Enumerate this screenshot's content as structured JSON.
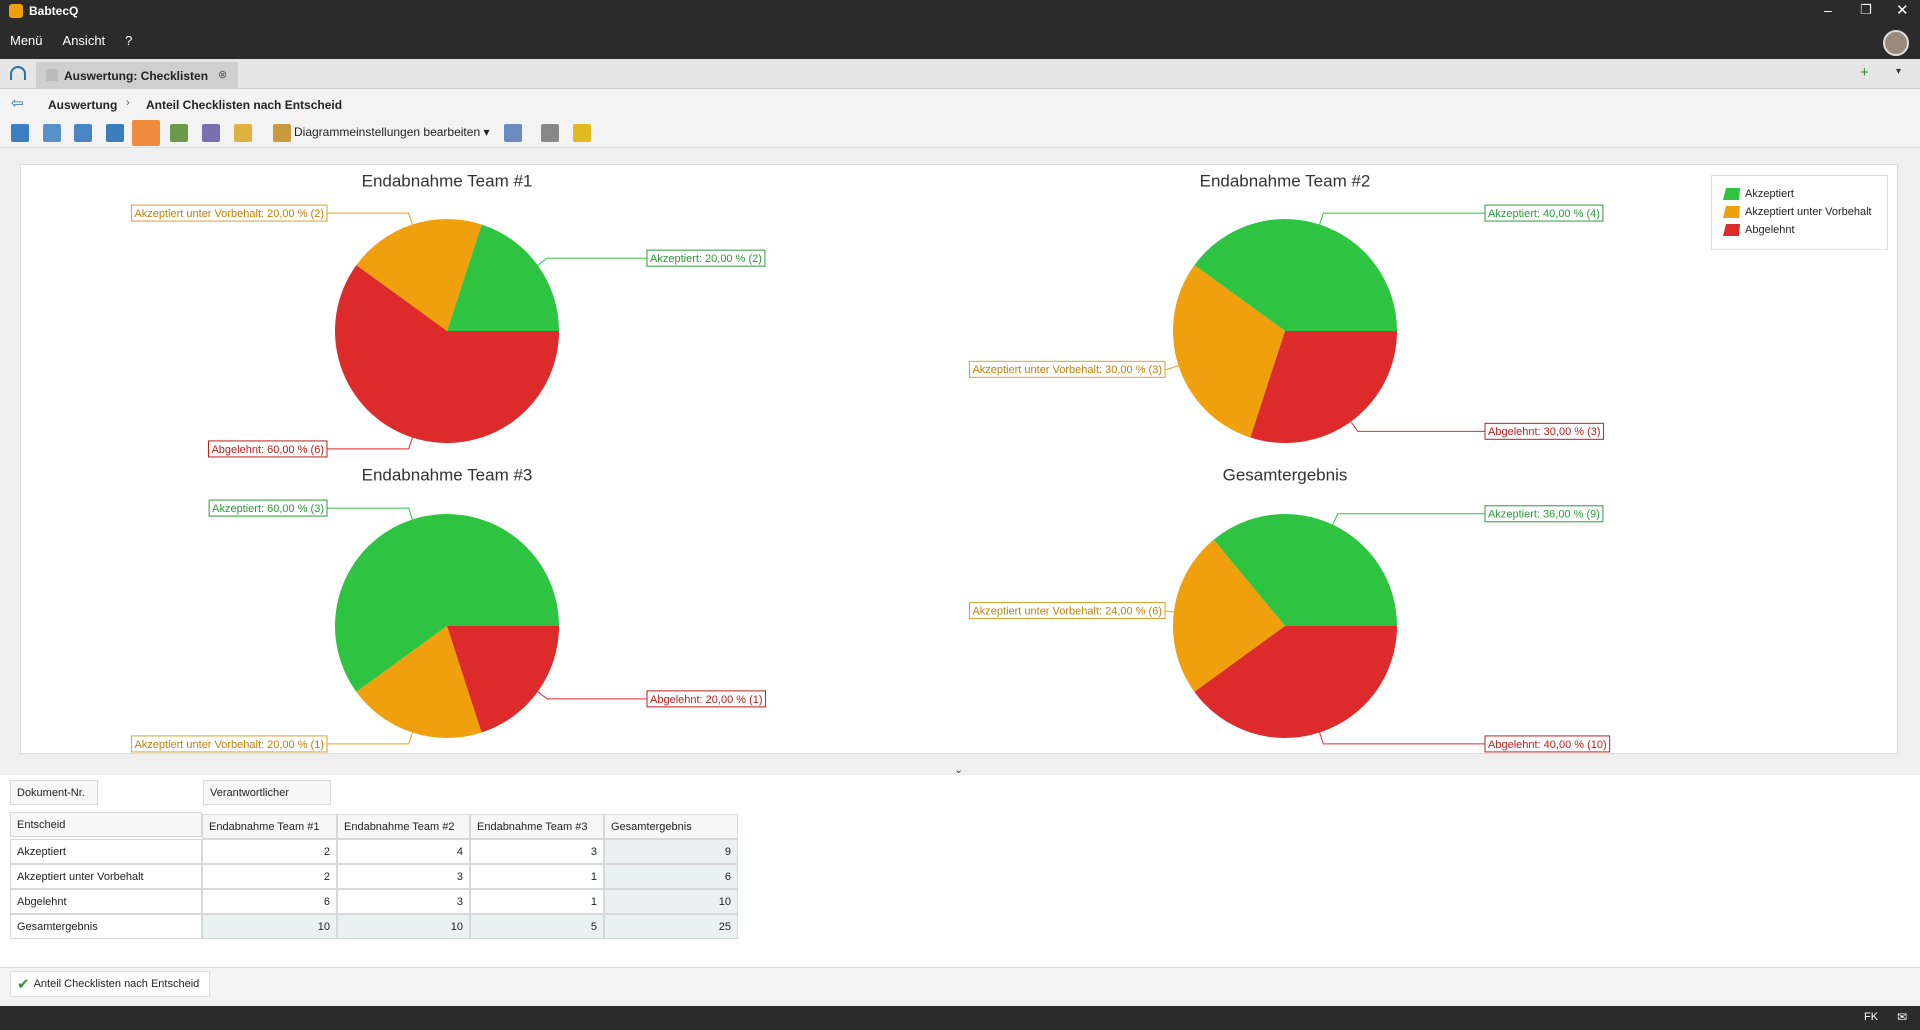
{
  "window": {
    "title": "BabtecQ"
  },
  "menu": [
    "Menü",
    "Ansicht",
    "?"
  ],
  "tab": {
    "label": "Auswertung: Checklisten"
  },
  "breadcrumb": [
    "Auswertung",
    "Anteil Checklisten nach Entscheid"
  ],
  "toolbar": {
    "settings": "Diagrammeinstellungen bearbeiten"
  },
  "chart_data": [
    {
      "type": "pie",
      "title": "Endabnahme Team #1",
      "categories": [
        "Akzeptiert",
        "Akzeptiert unter Vorbehalt",
        "Abgelehnt"
      ],
      "values": [
        20,
        20,
        60
      ],
      "value_labels": [
        "Akzeptiert: 20,00 % (2)",
        "Akzeptiert unter Vorbehalt: 20,00 % (2)",
        "Abgelehnt: 60,00 % (6)"
      ],
      "colors": [
        "#2ec441",
        "#f0a00c",
        "#dd2a2b"
      ]
    },
    {
      "type": "pie",
      "title": "Endabnahme Team #2",
      "categories": [
        "Akzeptiert",
        "Akzeptiert unter Vorbehalt",
        "Abgelehnt"
      ],
      "values": [
        40,
        30,
        30
      ],
      "value_labels": [
        "Akzeptiert: 40,00 % (4)",
        "Akzeptiert unter Vorbehalt: 30,00 % (3)",
        "Abgelehnt: 30,00 % (3)"
      ],
      "colors": [
        "#2ec441",
        "#f0a00c",
        "#dd2a2b"
      ]
    },
    {
      "type": "pie",
      "title": "Endabnahme Team #3",
      "categories": [
        "Akzeptiert",
        "Akzeptiert unter Vorbehalt",
        "Abgelehnt"
      ],
      "values": [
        60,
        20,
        20
      ],
      "value_labels": [
        "Akzeptiert: 60,00 % (3)",
        "Akzeptiert unter Vorbehalt: 20,00 % (1)",
        "Abgelehnt: 20,00 % (1)"
      ],
      "colors": [
        "#2ec441",
        "#f0a00c",
        "#dd2a2b"
      ]
    },
    {
      "type": "pie",
      "title": "Gesamtergebnis",
      "categories": [
        "Akzeptiert",
        "Akzeptiert unter Vorbehalt",
        "Abgelehnt"
      ],
      "values": [
        36,
        24,
        40
      ],
      "value_labels": [
        "Akzeptiert: 36,00 % (9)",
        "Akzeptiert unter Vorbehalt: 24,00 % (6)",
        "Abgelehnt: 40,00 % (10)"
      ],
      "colors": [
        "#2ec441",
        "#f0a00c",
        "#dd2a2b"
      ]
    }
  ],
  "pivot": {
    "filter_fields": [
      "Dokument-Nr."
    ],
    "column_field": "Verantwortlicher",
    "row_field": "Entscheid",
    "columns": [
      "Endabnahme Team #1",
      "Endabnahme Team #2",
      "Endabnahme Team #3",
      "Gesamtergebnis"
    ],
    "rows": [
      {
        "label": "Akzeptiert",
        "cells": [
          2,
          4,
          3,
          9
        ]
      },
      {
        "label": "Akzeptiert unter Vorbehalt",
        "cells": [
          2,
          3,
          1,
          6
        ]
      },
      {
        "label": "Abgelehnt",
        "cells": [
          6,
          3,
          1,
          10
        ]
      },
      {
        "label": "Gesamtergebnis",
        "cells": [
          10,
          10,
          5,
          25
        ]
      }
    ]
  },
  "bottom_tab": "Anteil Checklisten nach Entscheid",
  "status": {
    "user": "FK"
  }
}
